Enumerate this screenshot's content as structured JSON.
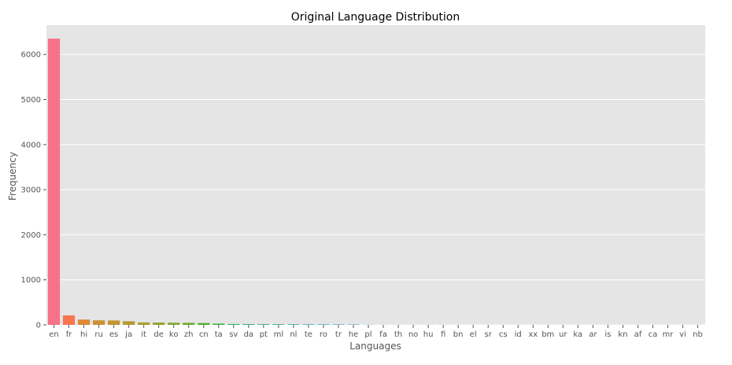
{
  "chart_data": {
    "type": "bar",
    "title": "Original Language Distribution",
    "xlabel": "Languages",
    "ylabel": "Frequency",
    "ylim": [
      0,
      6650
    ],
    "yticks": [
      0,
      1000,
      2000,
      3000,
      4000,
      5000,
      6000
    ],
    "grid": true,
    "legend": "none",
    "categories": [
      "en",
      "fr",
      "hi",
      "ru",
      "es",
      "ja",
      "it",
      "de",
      "ko",
      "zh",
      "cn",
      "ta",
      "sv",
      "da",
      "pt",
      "ml",
      "nl",
      "te",
      "ro",
      "tr",
      "he",
      "pl",
      "fa",
      "th",
      "no",
      "hu",
      "fi",
      "bn",
      "el",
      "sr",
      "cs",
      "id",
      "xx",
      "bm",
      "ur",
      "ka",
      "ar",
      "is",
      "kn",
      "af",
      "ca",
      "mr",
      "vi",
      "nb"
    ],
    "values": [
      6351,
      211,
      118,
      101,
      98,
      81,
      55,
      52,
      48,
      46,
      40,
      27,
      19,
      18,
      16,
      15,
      14,
      13,
      12,
      10,
      8,
      3,
      2,
      2,
      2,
      2,
      2,
      1,
      1,
      1,
      1,
      1,
      1,
      1,
      1,
      1,
      1,
      1,
      1,
      1,
      1,
      1,
      1,
      1
    ],
    "colors": {
      "plot_background": "#e5e5e5",
      "grid": "#ffffff",
      "text": "#555555",
      "title": "#000000",
      "bars": [
        "#f77189",
        "#f7754f",
        "#dc8932",
        "#ce9032",
        "#c39532",
        "#b69a32",
        "#a79f32",
        "#96a331",
        "#84a831",
        "#6cac31",
        "#4eb031",
        "#31b33e",
        "#33b165",
        "#34af78",
        "#35ae86",
        "#36ad91",
        "#36ac9b",
        "#37aaa4",
        "#38a9ad",
        "#39a7b5",
        "#3aa5bf",
        "#3ba3c8",
        "#3da0d4",
        "#3e9de3",
        "#4d97f3",
        "#6f8ff4",
        "#898af4",
        "#9b84f4",
        "#ac7ef4",
        "#bf77f4",
        "#d16ff4",
        "#e466f4",
        "#f45ff0",
        "#f463df",
        "#f566d1",
        "#f569c3",
        "#f56cb6",
        "#f56ead",
        "#f670a3",
        "#f6729a",
        "#f67391",
        "#f67386",
        "#f7737c",
        "#f77189"
      ]
    }
  }
}
